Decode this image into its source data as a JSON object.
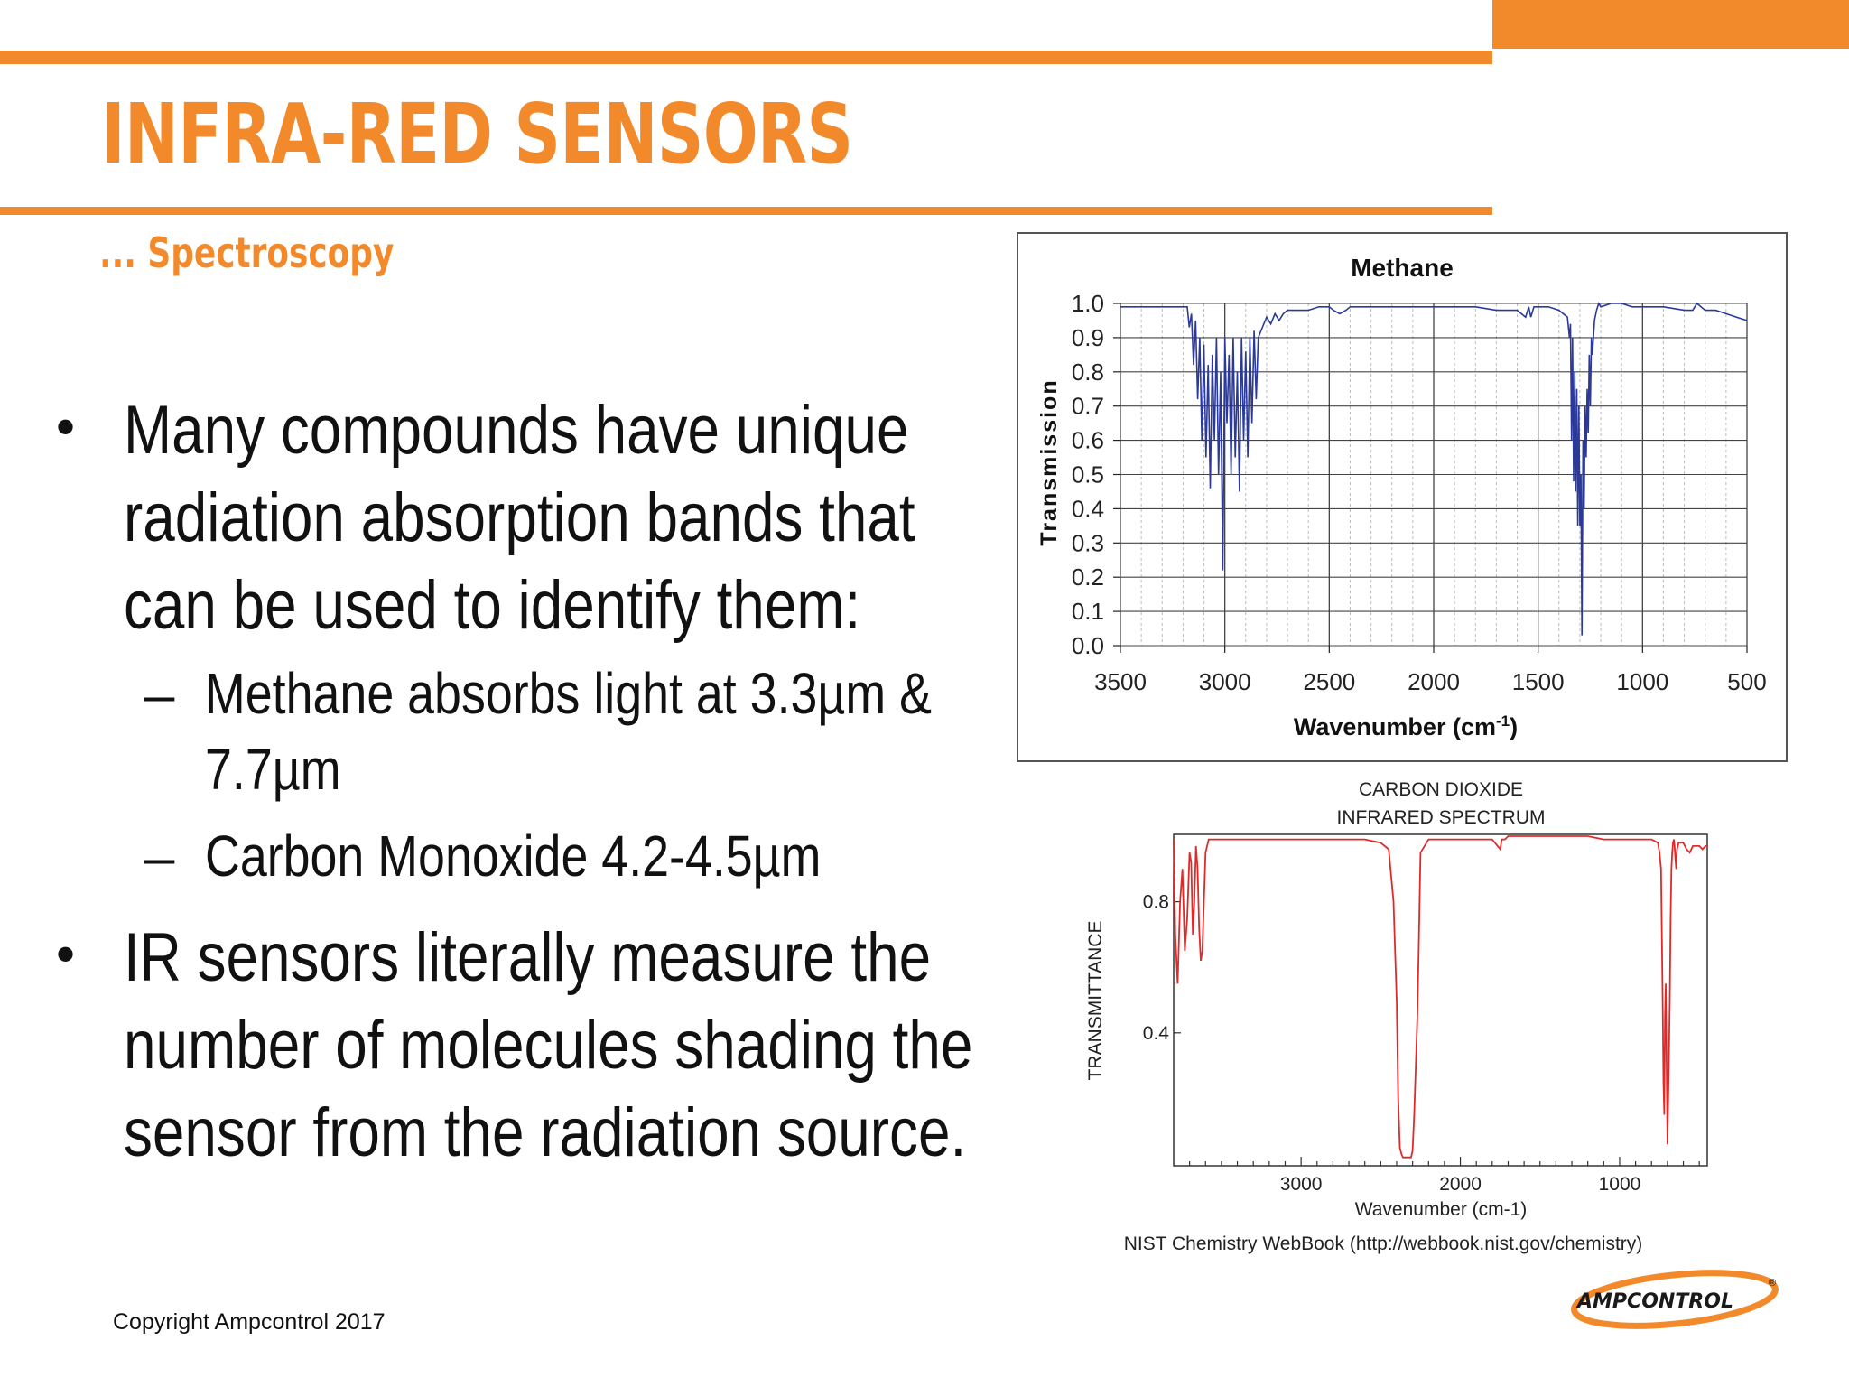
{
  "slide": {
    "title": "INFRA-RED SENSORS",
    "subtitle": "... Spectroscopy",
    "bullets": [
      {
        "lines": [
          "Many compounds have unique",
          "radiation absorption bands that",
          "can be used to identify them:"
        ],
        "subitems": [
          {
            "lines": [
              "Methane absorbs light at 3.3µm &",
              "7.7µm"
            ]
          },
          {
            "lines": [
              "Carbon Monoxide 4.2-4.5µm"
            ]
          }
        ]
      },
      {
        "lines": [
          "IR sensors literally measure the",
          "number of molecules shading the",
          "sensor from the radiation source."
        ]
      }
    ],
    "bullet_symbol": "•",
    "dash_symbol": "–",
    "copyright": "Copyright Ampcontrol 2017",
    "logo_text": "AMPCONTROL",
    "colors": {
      "accent": "#f28a2c",
      "methane_line": "#2b3a9a",
      "co2_line": "#e02a2a",
      "text": "#111111"
    }
  },
  "chart_data": [
    {
      "type": "line",
      "title": "Methane",
      "xlabel": "Wavenumber (cm-1)",
      "xlabel_main": "Wavenumber (cm",
      "xlabel_sup": "-1",
      "xlabel_close": ")",
      "ylabel": "Transmission",
      "xlim": [
        3500,
        500
      ],
      "ylim": [
        0.0,
        1.0
      ],
      "x_ticks": [
        "3500",
        "3000",
        "2500",
        "2000",
        "1500",
        "1000",
        "500"
      ],
      "y_ticks": [
        "1.0",
        "0.9",
        "0.8",
        "0.7",
        "0.6",
        "0.5",
        "0.4",
        "0.3",
        "0.2",
        "0.1",
        "0.0"
      ],
      "grid": true,
      "series": [
        {
          "color": "#2b3a9a",
          "x": [
            3500,
            3200,
            3180,
            3170,
            3160,
            3150,
            3140,
            3130,
            3120,
            3110,
            3100,
            3090,
            3080,
            3070,
            3060,
            3050,
            3040,
            3030,
            3020,
            3010,
            3000,
            2990,
            2980,
            2970,
            2960,
            2950,
            2940,
            2930,
            2920,
            2910,
            2900,
            2890,
            2880,
            2870,
            2860,
            2850,
            2840,
            2820,
            2800,
            2780,
            2760,
            2740,
            2720,
            2700,
            2650,
            2600,
            2550,
            2500,
            2480,
            2450,
            2420,
            2400,
            2350,
            2300,
            2200,
            2100,
            2000,
            1900,
            1800,
            1700,
            1600,
            1560,
            1545,
            1535,
            1520,
            1500,
            1450,
            1400,
            1360,
            1350,
            1345,
            1340,
            1335,
            1330,
            1325,
            1320,
            1315,
            1310,
            1305,
            1300,
            1295,
            1290,
            1285,
            1280,
            1275,
            1270,
            1265,
            1260,
            1255,
            1250,
            1245,
            1240,
            1230,
            1220,
            1210,
            1200,
            1150,
            1100,
            1050,
            1000,
            900,
            800,
            760,
            750,
            740,
            700,
            650,
            600,
            550,
            500
          ],
          "y": [
            0.99,
            0.99,
            0.99,
            0.93,
            0.97,
            0.82,
            0.95,
            0.72,
            0.9,
            0.6,
            0.88,
            0.55,
            0.82,
            0.46,
            0.85,
            0.6,
            0.9,
            0.5,
            0.8,
            0.22,
            0.9,
            0.65,
            0.85,
            0.5,
            0.9,
            0.55,
            0.8,
            0.45,
            0.9,
            0.6,
            0.86,
            0.55,
            0.9,
            0.65,
            0.92,
            0.72,
            0.9,
            0.93,
            0.96,
            0.94,
            0.97,
            0.95,
            0.97,
            0.98,
            0.98,
            0.98,
            0.99,
            0.99,
            0.98,
            0.97,
            0.98,
            0.99,
            0.99,
            0.99,
            0.99,
            0.99,
            0.99,
            0.99,
            0.99,
            0.98,
            0.98,
            0.96,
            0.99,
            0.96,
            0.99,
            0.99,
            0.99,
            0.98,
            0.96,
            0.9,
            0.94,
            0.6,
            0.9,
            0.48,
            0.8,
            0.45,
            0.75,
            0.35,
            0.7,
            0.35,
            0.5,
            0.03,
            0.6,
            0.4,
            0.7,
            0.55,
            0.75,
            0.62,
            0.85,
            0.7,
            0.9,
            0.85,
            0.95,
            0.98,
            1.0,
            0.99,
            1.0,
            1.0,
            0.99,
            0.99,
            0.99,
            0.98,
            0.98,
            0.99,
            1.0,
            0.98,
            0.98,
            0.97,
            0.96,
            0.95
          ]
        }
      ]
    },
    {
      "type": "line",
      "title": "CARBON DIOXIDE",
      "subtitle": "INFRARED SPECTRUM",
      "xlabel": "Wavenumber (cm-1)",
      "ylabel": "TRANSMITTANCE",
      "xlim": [
        3800,
        450
      ],
      "ylim": [
        0.0,
        1.0
      ],
      "x_ticks": [
        "3000",
        "2000",
        "1000"
      ],
      "y_ticks": [
        "0.8",
        "0.4"
      ],
      "source": "NIST Chemistry WebBook (http://webbook.nist.gov/chemistry)",
      "series": [
        {
          "color": "#e02a2a",
          "x": [
            3800,
            3790,
            3775,
            3760,
            3745,
            3730,
            3715,
            3700,
            3690,
            3680,
            3670,
            3660,
            3650,
            3640,
            3630,
            3620,
            3610,
            3600,
            3580,
            3550,
            3500,
            3400,
            3200,
            3000,
            2800,
            2600,
            2500,
            2450,
            2420,
            2400,
            2390,
            2380,
            2370,
            2360,
            2350,
            2340,
            2330,
            2320,
            2310,
            2300,
            2290,
            2280,
            2270,
            2260,
            2250,
            2200,
            2100,
            2000,
            1900,
            1800,
            1750,
            1740,
            1720,
            1700,
            1600,
            1500,
            1400,
            1300,
            1200,
            1100,
            1000,
            900,
            800,
            760,
            750,
            740,
            735,
            730,
            725,
            720,
            715,
            710,
            705,
            700,
            695,
            690,
            685,
            680,
            675,
            670,
            665,
            660,
            655,
            650,
            645,
            640,
            635,
            630,
            620,
            600,
            580,
            560,
            540,
            520,
            500,
            480,
            460,
            450
          ],
          "y": [
            0.99,
            0.7,
            0.55,
            0.8,
            0.9,
            0.65,
            0.75,
            0.95,
            0.92,
            0.7,
            0.8,
            0.97,
            0.9,
            0.72,
            0.62,
            0.65,
            0.8,
            0.95,
            0.99,
            0.99,
            0.99,
            0.99,
            0.99,
            0.99,
            0.99,
            0.99,
            0.98,
            0.96,
            0.8,
            0.5,
            0.2,
            0.05,
            0.03,
            0.02,
            0.02,
            0.02,
            0.02,
            0.02,
            0.02,
            0.04,
            0.15,
            0.3,
            0.45,
            0.7,
            0.95,
            0.99,
            0.99,
            0.99,
            0.99,
            0.99,
            0.96,
            0.99,
            0.99,
            1.0,
            1.0,
            1.0,
            1.0,
            1.0,
            1.0,
            0.99,
            0.99,
            0.99,
            0.99,
            0.98,
            0.95,
            0.9,
            0.7,
            0.5,
            0.25,
            0.15,
            0.45,
            0.55,
            0.3,
            0.06,
            0.2,
            0.35,
            0.5,
            0.75,
            0.9,
            0.95,
            0.98,
            0.99,
            0.97,
            0.93,
            0.9,
            0.96,
            0.97,
            0.98,
            0.98,
            0.98,
            0.96,
            0.95,
            0.97,
            0.97,
            0.97,
            0.96,
            0.97,
            0.97
          ]
        }
      ]
    }
  ]
}
